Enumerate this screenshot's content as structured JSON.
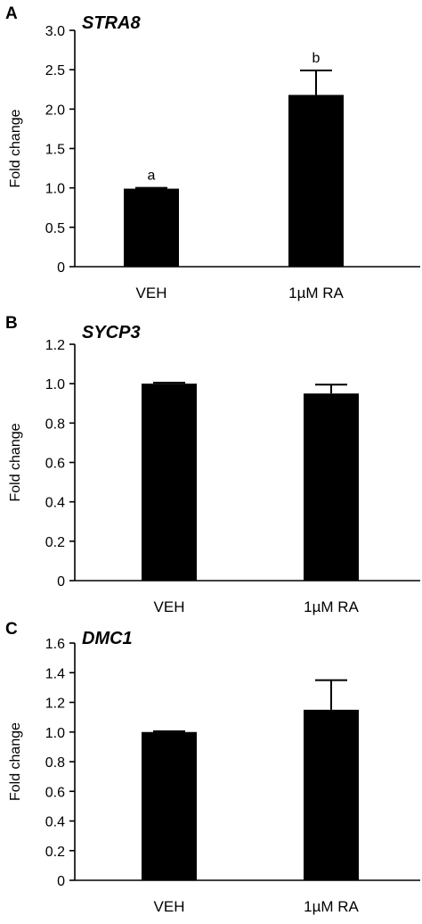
{
  "chart_data": [
    {
      "type": "bar",
      "panel_letter": "A",
      "title": "STRA8",
      "ylabel": "Fold change",
      "xlabel": "",
      "categories": [
        "VEH",
        "1µM RA"
      ],
      "values": [
        0.99,
        2.18
      ],
      "errors": [
        0.01,
        0.31
      ],
      "significance_letters": [
        "a",
        "b"
      ],
      "ylim": [
        0,
        3.0
      ],
      "yticks": [
        "0",
        "0.5",
        "1.0",
        "1.5",
        "2.0",
        "2.5",
        "3.0"
      ],
      "grid": false
    },
    {
      "type": "bar",
      "panel_letter": "B",
      "title": "SYCP3",
      "ylabel": "Fold change",
      "xlabel": "",
      "categories": [
        "VEH",
        "1µM RA"
      ],
      "values": [
        1.0,
        0.95
      ],
      "errors": [
        0.005,
        0.045
      ],
      "significance_letters": [
        "",
        ""
      ],
      "ylim": [
        0,
        1.2
      ],
      "yticks": [
        "0",
        "0.2",
        "0.4",
        "0.6",
        "0.8",
        "1.0",
        "1.2"
      ],
      "grid": false
    },
    {
      "type": "bar",
      "panel_letter": "C",
      "title": "DMC1",
      "ylabel": "Fold change",
      "xlabel": "",
      "categories": [
        "VEH",
        "1µM RA"
      ],
      "values": [
        1.0,
        1.15
      ],
      "errors": [
        0.005,
        0.2
      ],
      "significance_letters": [
        "",
        ""
      ],
      "ylim": [
        0,
        1.6
      ],
      "yticks": [
        "0",
        "0.2",
        "0.4",
        "0.6",
        "0.8",
        "1.0",
        "1.2",
        "1.4",
        "1.6"
      ],
      "grid": false
    }
  ]
}
